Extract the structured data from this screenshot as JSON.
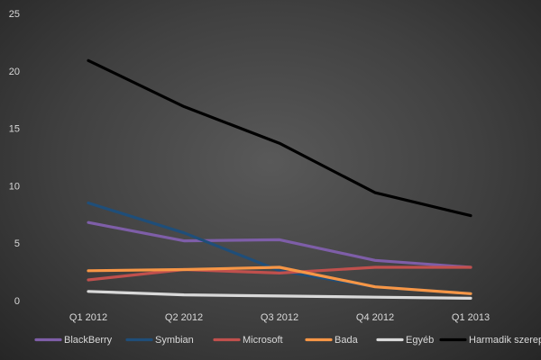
{
  "chart_data": {
    "type": "line",
    "title": "",
    "xlabel": "",
    "ylabel": "",
    "categories": [
      "Q1 2012",
      "Q2 2012",
      "Q3 2012",
      "Q4 2012",
      "Q1 2013"
    ],
    "ylim": [
      0,
      25
    ],
    "yticks": [
      "0",
      "5",
      "10",
      "15",
      "20",
      "25"
    ],
    "grid": false,
    "legend_position": "bottom",
    "series": [
      {
        "name": "BlackBerry",
        "color": "#7e5ea8",
        "values": [
          6.8,
          5.2,
          5.3,
          3.5,
          2.9
        ]
      },
      {
        "name": "Symbian",
        "color": "#1f4e79",
        "values": [
          8.5,
          5.9,
          2.6,
          1.2,
          0.6
        ]
      },
      {
        "name": "Microsoft",
        "color": "#c0504d",
        "values": [
          1.8,
          2.7,
          2.4,
          2.9,
          2.9
        ]
      },
      {
        "name": "Bada",
        "color": "#f79646",
        "values": [
          2.6,
          2.7,
          2.9,
          1.2,
          0.6
        ]
      },
      {
        "name": "Egyéb",
        "color": "#d9d9d9",
        "values": [
          0.8,
          0.5,
          0.4,
          0.3,
          0.2
        ]
      },
      {
        "name": "Harmadik szereplő",
        "color": "#000000",
        "values": [
          20.9,
          16.9,
          13.7,
          9.4,
          7.4
        ]
      }
    ]
  }
}
